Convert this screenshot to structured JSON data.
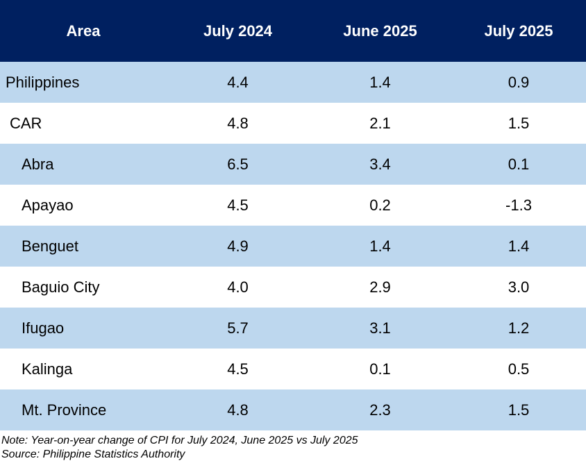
{
  "chart_data": {
    "type": "table",
    "columns": [
      "Area",
      "July 2024",
      "June 2025",
      "July 2025"
    ],
    "rows": [
      {
        "area": "Philippines",
        "level": 0,
        "values": [
          "4.4",
          "1.4",
          "0.9"
        ]
      },
      {
        "area": "CAR",
        "level": 1,
        "values": [
          "4.8",
          "2.1",
          "1.5"
        ]
      },
      {
        "area": "Abra",
        "level": 2,
        "values": [
          "6.5",
          "3.4",
          "0.1"
        ]
      },
      {
        "area": "Apayao",
        "level": 2,
        "values": [
          "4.5",
          "0.2",
          "-1.3"
        ]
      },
      {
        "area": "Benguet",
        "level": 2,
        "values": [
          "4.9",
          "1.4",
          "1.4"
        ]
      },
      {
        "area": "Baguio City",
        "level": 2,
        "values": [
          "4.0",
          "2.9",
          "3.0"
        ]
      },
      {
        "area": "Ifugao",
        "level": 2,
        "values": [
          "5.7",
          "3.1",
          "1.2"
        ]
      },
      {
        "area": "Kalinga",
        "level": 2,
        "values": [
          "4.5",
          "0.1",
          "0.5"
        ]
      },
      {
        "area": "Mt. Province",
        "level": 2,
        "values": [
          "4.8",
          "2.3",
          "1.5"
        ]
      }
    ],
    "note": "Note: Year-on-year change of CPI for July 2024, June 2025 vs July 2025",
    "source": "Source: Philippine Statistics Authority"
  },
  "colors": {
    "header_bg": "#002060",
    "band_bg": "#bdd7ee",
    "header_text": "#ffffff"
  }
}
